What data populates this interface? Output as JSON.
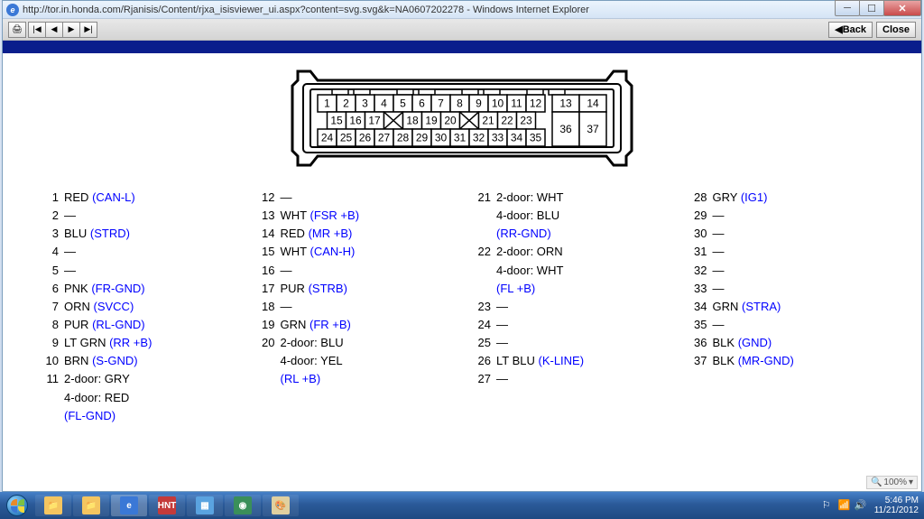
{
  "window": {
    "title": "http://tor.in.honda.com/Rjanisis/Content/rjxa_isisviewer_ui.aspx?content=svg.svg&k=NA0607202278 - Windows Internet Explorer",
    "back_label": "Back",
    "close_label": "Close",
    "zoom_label": "100%"
  },
  "connector": {
    "row1": [
      1,
      2,
      3,
      4,
      5,
      6,
      7,
      8,
      9,
      10,
      11,
      12
    ],
    "row1b": [
      13,
      14
    ],
    "row2": [
      15,
      16,
      17,
      "X",
      18,
      19,
      20,
      "X",
      21,
      22,
      23
    ],
    "row3": [
      24,
      25,
      26,
      27,
      28,
      29,
      30,
      31,
      32,
      33,
      34,
      35
    ],
    "row23b": [
      36,
      37
    ]
  },
  "pins": {
    "col1": [
      {
        "n": "1",
        "c": "RED",
        "s": "(CAN-L)"
      },
      {
        "n": "2",
        "c": "—"
      },
      {
        "n": "3",
        "c": "BLU",
        "s": "(STRD)"
      },
      {
        "n": "4",
        "c": "—"
      },
      {
        "n": "5",
        "c": "—"
      },
      {
        "n": "6",
        "c": "PNK",
        "s": "(FR-GND)"
      },
      {
        "n": "7",
        "c": "ORN",
        "s": "(SVCC)"
      },
      {
        "n": "8",
        "c": "PUR",
        "s": "(RL-GND)"
      },
      {
        "n": "9",
        "c": "LT GRN",
        "s": "(RR +B)"
      },
      {
        "n": "10",
        "c": "BRN",
        "s": "(S-GND)"
      },
      {
        "n": "11",
        "c": "2-door: GRY"
      },
      {
        "n": "",
        "c": "4-door: RED"
      },
      {
        "n": "",
        "s": "(FL-GND)"
      }
    ],
    "col2": [
      {
        "n": "12",
        "c": "—"
      },
      {
        "n": "13",
        "c": "WHT",
        "s": "(FSR +B)"
      },
      {
        "n": "14",
        "c": "RED",
        "s": "(MR +B)"
      },
      {
        "n": "15",
        "c": "WHT",
        "s": "(CAN-H)"
      },
      {
        "n": "16",
        "c": "—"
      },
      {
        "n": "17",
        "c": "PUR",
        "s": "(STRB)"
      },
      {
        "n": "18",
        "c": "—"
      },
      {
        "n": "19",
        "c": "GRN",
        "s": "(FR +B)"
      },
      {
        "n": "20",
        "c": "2-door: BLU"
      },
      {
        "n": "",
        "c": "4-door: YEL"
      },
      {
        "n": "",
        "s": "(RL +B)"
      }
    ],
    "col3": [
      {
        "n": "21",
        "c": "2-door: WHT"
      },
      {
        "n": "",
        "c": "4-door: BLU"
      },
      {
        "n": "",
        "s": "(RR-GND)"
      },
      {
        "n": "22",
        "c": "2-door: ORN"
      },
      {
        "n": "",
        "c": "4-door: WHT"
      },
      {
        "n": "",
        "s": "(FL +B)"
      },
      {
        "n": "23",
        "c": "—"
      },
      {
        "n": "24",
        "c": "—"
      },
      {
        "n": "25",
        "c": "—"
      },
      {
        "n": "26",
        "c": "LT BLU",
        "s": "(K-LINE)"
      },
      {
        "n": "27",
        "c": "—"
      }
    ],
    "col4": [
      {
        "n": "28",
        "c": "GRY",
        "s": "(IG1)"
      },
      {
        "n": "29",
        "c": "—"
      },
      {
        "n": "30",
        "c": "—"
      },
      {
        "n": "31",
        "c": "—"
      },
      {
        "n": "32",
        "c": "—"
      },
      {
        "n": "33",
        "c": "—"
      },
      {
        "n": "34",
        "c": "GRN",
        "s": "(STRA)"
      },
      {
        "n": "35",
        "c": "—"
      },
      {
        "n": "36",
        "c": "BLK",
        "s": "(GND)"
      },
      {
        "n": "37",
        "c": "BLK",
        "s": "(MR-GND)"
      }
    ]
  },
  "taskbar": {
    "items": [
      {
        "bg": "#f4c560",
        "t": "📁"
      },
      {
        "bg": "#f4c560",
        "t": "📁"
      },
      {
        "bg": "#3a78d6",
        "t": "e"
      },
      {
        "bg": "#c43a3a",
        "t": "HNT"
      },
      {
        "bg": "#5aa3e0",
        "t": "▦"
      },
      {
        "bg": "#3a8f5a",
        "t": "◉"
      },
      {
        "bg": "#e0d0a0",
        "t": "🎨"
      }
    ],
    "time": "5:46 PM",
    "date": "11/21/2012"
  }
}
